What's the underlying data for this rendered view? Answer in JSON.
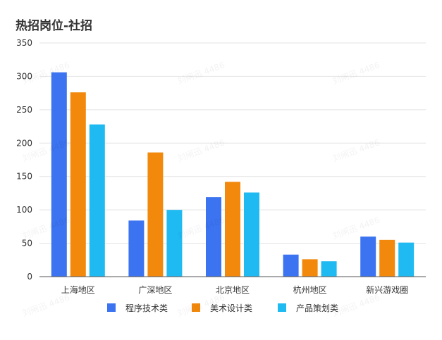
{
  "chart_data": {
    "type": "bar",
    "title": "热招岗位-社招",
    "categories": [
      "上海地区",
      "广深地区",
      "北京地区",
      "杭州地区",
      "新兴游戏圈"
    ],
    "series": [
      {
        "name": "程序技术类",
        "color": "#3b73f0",
        "values": [
          306,
          84,
          119,
          33,
          60
        ]
      },
      {
        "name": "美术设计类",
        "color": "#f2890c",
        "values": [
          276,
          186,
          142,
          26,
          55
        ]
      },
      {
        "name": "产品策划类",
        "color": "#1fbaf2",
        "values": [
          228,
          100,
          126,
          23,
          51
        ]
      }
    ],
    "ylim": [
      0,
      350
    ],
    "yticks": [
      0,
      50,
      100,
      150,
      200,
      250,
      300,
      350
    ],
    "grid": true,
    "legend": "bottom"
  },
  "watermark": "刘闸迅 4486"
}
